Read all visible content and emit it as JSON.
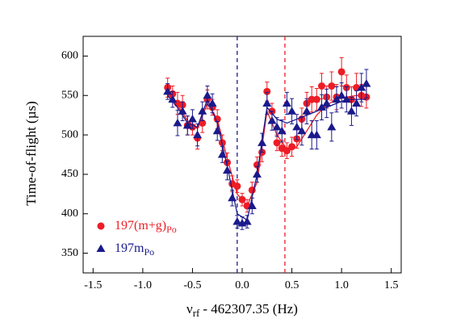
{
  "chart_data": {
    "type": "scatter",
    "ylabel": "Time-of-flight (µs)",
    "xlabel": {
      "symbol": "ν",
      "subscript": "rf",
      "text": "- 462307.35 (Hz)"
    },
    "xlim": [
      -1.6,
      1.6
    ],
    "ylim": [
      325,
      625
    ],
    "xticks": [
      -1.5,
      {
        "value": -1,
        "label": "-1.0"
      },
      -0.5,
      {
        "value": 0,
        "label": "0.0"
      },
      0.5,
      {
        "value": 1,
        "label": "1.0"
      },
      1.5
    ],
    "yticks": [
      350,
      400,
      450,
      500,
      550,
      600
    ],
    "grid": false,
    "legend": "lower-left",
    "x": [
      -0.75,
      -0.7,
      -0.65,
      -0.6,
      -0.55,
      -0.5,
      -0.45,
      -0.4,
      -0.35,
      -0.3,
      -0.25,
      -0.2,
      -0.15,
      -0.1,
      -0.05,
      0,
      0.05,
      0.1,
      0.15,
      0.2,
      0.25,
      0.3,
      0.35,
      0.4,
      0.45,
      0.5,
      0.55,
      0.6,
      0.65,
      0.7,
      0.75,
      0.8,
      0.85,
      0.9,
      0.95,
      1,
      1.05,
      1.1,
      1.15,
      1.2,
      1.25
    ],
    "series": [
      {
        "name": "197(m+g)",
        "name_subscript": "Po",
        "color": "#ee1c25",
        "marker": "circle",
        "values": [
          560,
          552,
          540,
          538,
          512,
          510,
          496,
          515,
          545,
          535,
          520,
          490,
          465,
          438,
          435,
          418,
          410,
          430,
          462,
          478,
          555,
          530,
          490,
          483,
          480,
          485,
          495,
          520,
          540,
          545,
          545,
          562,
          548,
          562,
          548,
          580,
          560,
          545,
          560,
          550,
          548
        ],
        "errors": [
          12,
          10,
          14,
          12,
          12,
          10,
          14,
          12,
          12,
          10,
          12,
          10,
          12,
          10,
          8,
          8,
          8,
          10,
          10,
          12,
          12,
          10,
          10,
          10,
          10,
          12,
          12,
          14,
          14,
          16,
          14,
          16,
          14,
          18,
          16,
          18,
          16,
          16,
          18,
          14,
          14
        ],
        "fit": {
          "x": [
            -0.75,
            -0.65,
            -0.55,
            -0.45,
            -0.35,
            -0.25,
            -0.15,
            -0.05,
            0.05,
            0.15,
            0.25,
            0.35,
            0.45,
            0.55,
            0.65,
            0.75,
            0.85,
            0.95,
            1.05,
            1.15,
            1.25
          ],
          "values": [
            552,
            538,
            518,
            508,
            540,
            520,
            470,
            425,
            410,
            440,
            530,
            500,
            482,
            485,
            505,
            525,
            538,
            545,
            548,
            550,
            550
          ]
        }
      },
      {
        "name": "197m",
        "name_subscript": "Po",
        "color": "#1a1a8c",
        "marker": "triangle",
        "values": [
          555,
          545,
          515,
          530,
          512,
          520,
          500,
          530,
          550,
          540,
          505,
          475,
          455,
          420,
          390,
          388,
          390,
          410,
          450,
          490,
          540,
          518,
          510,
          505,
          540,
          530,
          510,
          505,
          530,
          500,
          500,
          535,
          540,
          510,
          545,
          550,
          545,
          530,
          540,
          560,
          565
        ],
        "errors": [
          10,
          10,
          16,
          12,
          12,
          12,
          14,
          12,
          12,
          12,
          12,
          10,
          12,
          10,
          8,
          8,
          8,
          10,
          10,
          12,
          14,
          12,
          12,
          14,
          14,
          16,
          16,
          18,
          16,
          18,
          18,
          16,
          18,
          18,
          16,
          16,
          16,
          18,
          16,
          18,
          18
        ],
        "fit": {
          "x": [
            -0.75,
            -0.65,
            -0.55,
            -0.45,
            -0.35,
            -0.25,
            -0.15,
            -0.05,
            0.05,
            0.15,
            0.25,
            0.35,
            0.45,
            0.55,
            0.65,
            0.75,
            0.85,
            0.95,
            1.05,
            1.15,
            1.25
          ],
          "values": [
            550,
            535,
            515,
            510,
            545,
            515,
            460,
            400,
            392,
            450,
            535,
            520,
            515,
            520,
            525,
            530,
            535,
            540,
            545,
            545,
            545
          ]
        }
      }
    ],
    "vlines": [
      {
        "x": -0.05,
        "color": "#1a1a8c"
      },
      {
        "x": 0.43,
        "color": "#ee1c25"
      }
    ]
  }
}
